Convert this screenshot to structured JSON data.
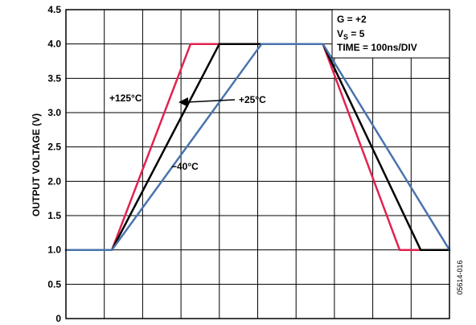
{
  "chart_data": {
    "type": "line",
    "ylabel": "OUTPUT VOLTAGE (V)",
    "xlabel": "",
    "title": "",
    "ylim": [
      0,
      4.5
    ],
    "yticks": [
      "0",
      "0.5",
      "1.0",
      "1.5",
      "2.0",
      "2.5",
      "3.0",
      "3.5",
      "4.0",
      "4.5"
    ],
    "xlim": [
      0,
      1000
    ],
    "x_divisions": 10,
    "grid": true,
    "conditions": {
      "gain": "G = +2",
      "vs_main": "V",
      "vs_sub": "S",
      "vs_value": " = 5",
      "time": "TIME = 100ns/DIV"
    },
    "series": [
      {
        "name": "+125°C",
        "color": "#e0234e",
        "points": [
          [
            0,
            1.0
          ],
          [
            120,
            1.0
          ],
          [
            325,
            4.0
          ],
          [
            670,
            4.0
          ],
          [
            870,
            1.0
          ],
          [
            1000,
            1.0
          ]
        ]
      },
      {
        "name": "+25°C",
        "color": "#000000",
        "points": [
          [
            0,
            1.0
          ],
          [
            120,
            1.0
          ],
          [
            400,
            4.0
          ],
          [
            670,
            4.0
          ],
          [
            925,
            1.0
          ],
          [
            1000,
            1.0
          ]
        ]
      },
      {
        "name": "−40°C",
        "color": "#4a73ad",
        "points": [
          [
            0,
            1.0
          ],
          [
            120,
            1.0
          ],
          [
            510,
            4.0
          ],
          [
            670,
            4.0
          ],
          [
            1000,
            1.0
          ]
        ]
      }
    ],
    "annotations": [
      {
        "text": "+125°C",
        "series": "+125°C"
      },
      {
        "text": "+25°C",
        "series": "+25°C"
      },
      {
        "text": "−40°C",
        "series": "−40°C"
      }
    ],
    "figure_id": "05614-016"
  }
}
